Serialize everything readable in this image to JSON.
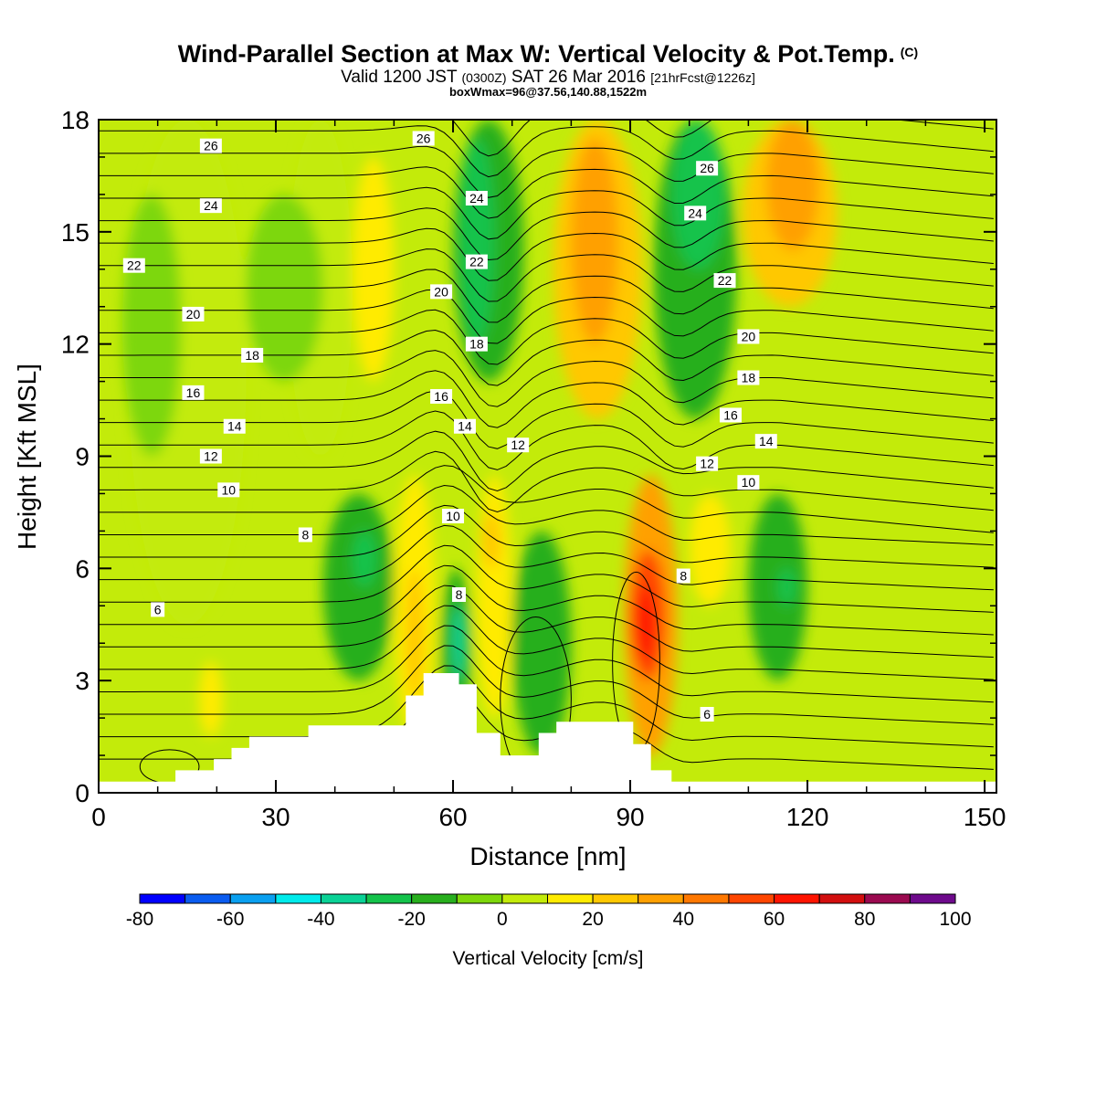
{
  "header": {
    "title": "Wind-Parallel Section at Max W: Vertical Velocity & Pot.Temp.",
    "copyright": "(C)",
    "valid_prefix": "Valid 1200 JST",
    "valid_utc": "(0300Z)",
    "valid_date": "SAT 26 Mar 2016",
    "forecast_tag": "[21hrFcst@1226z]",
    "box_info": "boxWmax=96@37.56,140.88,1522m"
  },
  "chart_data": {
    "type": "heatmap",
    "title": "Wind-Parallel Section at Max W: Vertical Velocity & Pot.Temp.",
    "xlabel": "Distance [nm]",
    "ylabel": "Height [Kft MSL]",
    "xlim": [
      0,
      152
    ],
    "ylim": [
      0,
      18
    ],
    "x_ticks": [
      0,
      30,
      60,
      90,
      120,
      150
    ],
    "y_ticks": [
      0,
      3,
      6,
      9,
      12,
      15,
      18
    ],
    "colorbar": {
      "label": "Vertical Velocity [cm/s]",
      "tick_values": [
        -80,
        -60,
        -40,
        -20,
        0,
        20,
        40,
        60,
        80,
        100
      ],
      "levels": [
        -80,
        -70,
        -60,
        -50,
        -40,
        -30,
        -20,
        -10,
        0,
        10,
        20,
        30,
        40,
        50,
        60,
        70,
        80,
        90,
        100
      ],
      "colors": [
        "#0000ff",
        "#0a5cf0",
        "#0aa0f0",
        "#00ebeb",
        "#0ad296",
        "#14c34b",
        "#28af1e",
        "#7dd70a",
        "#c3eb0a",
        "#ffeb00",
        "#ffc800",
        "#ffa000",
        "#ff7800",
        "#ff4600",
        "#ff1400",
        "#d20f0f",
        "#9b0a50",
        "#6e0a8c"
      ]
    },
    "background_band": "w 0 to 10 cm/s",
    "velocity_cells": [
      {
        "x": [
          5,
          25
        ],
        "z": [
          4.5,
          18
        ],
        "w": 5
      },
      {
        "x": [
          32,
          43
        ],
        "z": [
          9,
          18
        ],
        "w": 5
      },
      {
        "x": [
          43,
          50
        ],
        "z": [
          11,
          17
        ],
        "w": 15
      },
      {
        "x": [
          4,
          14
        ],
        "z": [
          9,
          16
        ],
        "w": -5
      },
      {
        "x": [
          25,
          38
        ],
        "z": [
          11,
          16
        ],
        "w": -5
      },
      {
        "x": [
          60,
          72
        ],
        "z": [
          11,
          18
        ],
        "w": -20
      },
      {
        "x": [
          61,
          67
        ],
        "z": [
          12,
          17.5
        ],
        "w": -28
      },
      {
        "x": [
          77,
          92
        ],
        "z": [
          10,
          18
        ],
        "w": 20
      },
      {
        "x": [
          80,
          88
        ],
        "z": [
          12,
          17.5
        ],
        "w": 32
      },
      {
        "x": [
          94,
          108
        ],
        "z": [
          10,
          18
        ],
        "w": -20
      },
      {
        "x": [
          97,
          106
        ],
        "z": [
          14,
          18
        ],
        "w": -28
      },
      {
        "x": [
          109,
          125
        ],
        "z": [
          13,
          18
        ],
        "w": 25
      },
      {
        "x": [
          113,
          122
        ],
        "z": [
          14.5,
          18
        ],
        "w": 38
      },
      {
        "x": [
          38,
          50
        ],
        "z": [
          3,
          8
        ],
        "w": -15
      },
      {
        "x": [
          43,
          47
        ],
        "z": [
          5.5,
          7
        ],
        "w": -26
      },
      {
        "x": [
          50,
          57
        ],
        "z": [
          1.5,
          8.5
        ],
        "w": 15
      },
      {
        "x": [
          52,
          55
        ],
        "z": [
          2.5,
          6
        ],
        "w": 25
      },
      {
        "x": [
          58,
          63
        ],
        "z": [
          1.5,
          6
        ],
        "w": -15
      },
      {
        "x": [
          60,
          62
        ],
        "z": [
          3,
          5
        ],
        "w": -35
      },
      {
        "x": [
          64,
          70
        ],
        "z": [
          2,
          8.5
        ],
        "w": 15
      },
      {
        "x": [
          65,
          68
        ],
        "z": [
          6,
          7.5
        ],
        "w": 25
      },
      {
        "x": [
          70,
          80
        ],
        "z": [
          1,
          7
        ],
        "w": -12
      },
      {
        "x": [
          89,
          98
        ],
        "z": [
          1,
          8.5
        ],
        "w": 30
      },
      {
        "x": [
          90,
          96
        ],
        "z": [
          3,
          6.5
        ],
        "w": 50
      },
      {
        "x": [
          91,
          94
        ],
        "z": [
          3.5,
          5.5
        ],
        "w": 62
      },
      {
        "x": [
          100,
          107
        ],
        "z": [
          5,
          8
        ],
        "w": 15
      },
      {
        "x": [
          110,
          120
        ],
        "z": [
          3,
          8
        ],
        "w": -15
      },
      {
        "x": [
          115,
          118
        ],
        "z": [
          5,
          6
        ],
        "w": -28
      },
      {
        "x": [
          17,
          21
        ],
        "z": [
          1.5,
          3.5
        ],
        "w": 15
      }
    ],
    "theta_label_values": [
      6,
      8,
      10,
      12,
      14,
      16,
      18,
      20,
      22,
      24,
      26
    ],
    "theta_labels": [
      {
        "text": "26",
        "x": 19,
        "y": 17.3
      },
      {
        "text": "24",
        "x": 19,
        "y": 15.7
      },
      {
        "text": "22",
        "x": 6,
        "y": 14.1
      },
      {
        "text": "20",
        "x": 16,
        "y": 12.8
      },
      {
        "text": "18",
        "x": 26,
        "y": 11.7
      },
      {
        "text": "16",
        "x": 16,
        "y": 10.7
      },
      {
        "text": "14",
        "x": 23,
        "y": 9.8
      },
      {
        "text": "12",
        "x": 19,
        "y": 9.0
      },
      {
        "text": "10",
        "x": 22,
        "y": 8.1
      },
      {
        "text": "8",
        "x": 35,
        "y": 6.9
      },
      {
        "text": "6",
        "x": 10,
        "y": 4.9
      },
      {
        "text": "26",
        "x": 55,
        "y": 17.5
      },
      {
        "text": "24",
        "x": 64,
        "y": 15.9
      },
      {
        "text": "22",
        "x": 64,
        "y": 14.2
      },
      {
        "text": "20",
        "x": 58,
        "y": 13.4
      },
      {
        "text": "18",
        "x": 64,
        "y": 12.0
      },
      {
        "text": "16",
        "x": 58,
        "y": 10.6
      },
      {
        "text": "14",
        "x": 62,
        "y": 9.8
      },
      {
        "text": "12",
        "x": 71,
        "y": 9.3
      },
      {
        "text": "10",
        "x": 60,
        "y": 7.4
      },
      {
        "text": "8",
        "x": 61,
        "y": 5.3
      },
      {
        "text": "26",
        "x": 103,
        "y": 16.7
      },
      {
        "text": "24",
        "x": 101,
        "y": 15.5
      },
      {
        "text": "22",
        "x": 106,
        "y": 13.7
      },
      {
        "text": "20",
        "x": 110,
        "y": 12.2
      },
      {
        "text": "18",
        "x": 110,
        "y": 11.1
      },
      {
        "text": "16",
        "x": 107,
        "y": 10.1
      },
      {
        "text": "14",
        "x": 113,
        "y": 9.4
      },
      {
        "text": "12",
        "x": 103,
        "y": 8.8
      },
      {
        "text": "10",
        "x": 110,
        "y": 8.3
      },
      {
        "text": "8",
        "x": 99,
        "y": 5.8
      },
      {
        "text": "6",
        "x": 103,
        "y": 2.1
      }
    ],
    "terrain_profile": [
      [
        0,
        0.3
      ],
      [
        13,
        0.3
      ],
      [
        13,
        0.6
      ],
      [
        19.5,
        0.6
      ],
      [
        19.5,
        0.9
      ],
      [
        22.5,
        0.9
      ],
      [
        22.5,
        1.2
      ],
      [
        25.5,
        1.2
      ],
      [
        25.5,
        1.5
      ],
      [
        35.5,
        1.5
      ],
      [
        35.5,
        1.8
      ],
      [
        52,
        1.8
      ],
      [
        52,
        2.6
      ],
      [
        55,
        2.6
      ],
      [
        55,
        3.2
      ],
      [
        61,
        3.2
      ],
      [
        61,
        2.9
      ],
      [
        64,
        2.9
      ],
      [
        64,
        1.6
      ],
      [
        68,
        1.6
      ],
      [
        68,
        1.0
      ],
      [
        74.5,
        1.0
      ],
      [
        74.5,
        1.6
      ],
      [
        77.5,
        1.6
      ],
      [
        77.5,
        1.9
      ],
      [
        90.5,
        1.9
      ],
      [
        90.5,
        1.3
      ],
      [
        93.5,
        1.3
      ],
      [
        93.5,
        0.6
      ],
      [
        97,
        0.6
      ],
      [
        97,
        0.3
      ],
      [
        152,
        0.3
      ]
    ]
  }
}
